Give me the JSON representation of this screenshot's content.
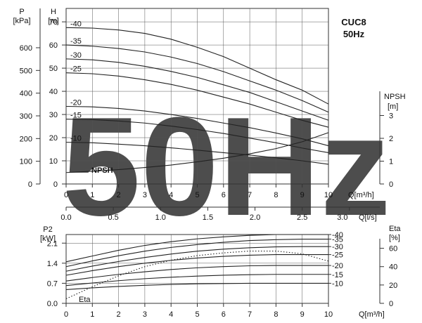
{
  "chart_data": [
    {
      "type": "line",
      "title": "CUC8",
      "subtitle": "50Hz",
      "watermark": "50Hz",
      "xlabel": "Q[m³/h]",
      "xlabel2": "Q[l/s]",
      "x_ticks": [
        "0",
        "1",
        "2",
        "3",
        "4",
        "5",
        "6",
        "7",
        "8",
        "9",
        "10"
      ],
      "x2_ticks": [
        "0.0",
        "0.5",
        "1.0",
        "1.5",
        "2.0",
        "2.5",
        "3.0"
      ],
      "x2_values": [
        0,
        0.5,
        1.0,
        1.5,
        2.0,
        2.5,
        3.0
      ],
      "xlim": [
        0,
        10
      ],
      "left_axis_p": {
        "label": "P",
        "unit": "[kPa]",
        "ticks": [
          "0",
          "100",
          "200",
          "300",
          "400",
          "500",
          "600"
        ],
        "values": [
          0,
          100,
          200,
          300,
          400,
          500,
          600
        ]
      },
      "left_axis_h": {
        "label": "H",
        "unit": "[m]",
        "ticks": [
          "0",
          "10",
          "20",
          "30",
          "40",
          "50",
          "60",
          "70"
        ],
        "values": [
          0,
          10,
          20,
          30,
          40,
          50,
          60,
          70
        ]
      },
      "right_axis": {
        "label": "NPSH",
        "unit": "[m]",
        "ticks": [
          "0",
          "1",
          "2",
          "3"
        ],
        "values": [
          0,
          1,
          2,
          3
        ]
      },
      "ylim": [
        0,
        76
      ],
      "series": [
        {
          "name": "-40",
          "x": [
            0,
            1,
            2,
            3,
            4,
            5,
            6,
            7,
            8,
            9,
            10
          ],
          "y": [
            67.5,
            67.3,
            66.5,
            65.0,
            62.5,
            59.0,
            55.0,
            50.0,
            45.0,
            40.5,
            34.5
          ]
        },
        {
          "name": "-35",
          "x": [
            0,
            1,
            2,
            3,
            4,
            5,
            6,
            7,
            8,
            9,
            10
          ],
          "y": [
            60.0,
            59.5,
            58.5,
            57.0,
            54.8,
            52.0,
            48.5,
            44.5,
            40.5,
            36.0,
            31.0
          ]
        },
        {
          "name": "-30",
          "x": [
            0,
            1,
            2,
            3,
            4,
            5,
            6,
            7,
            8,
            9,
            10
          ],
          "y": [
            54.0,
            53.6,
            52.5,
            50.8,
            48.6,
            46.0,
            42.8,
            39.5,
            35.5,
            31.5,
            27.5
          ]
        },
        {
          "name": "-25",
          "x": [
            0,
            1,
            2,
            3,
            4,
            5,
            6,
            7,
            8,
            9,
            10
          ],
          "y": [
            48.0,
            47.6,
            46.6,
            45.0,
            43.0,
            40.5,
            37.5,
            34.5,
            31.0,
            27.5,
            24.5
          ]
        },
        {
          "name": "-20",
          "x": [
            0,
            1,
            2,
            3,
            4,
            5,
            6,
            7,
            8,
            9,
            10
          ],
          "y": [
            33.5,
            33.3,
            32.6,
            31.5,
            30.0,
            28.3,
            26.3,
            24.3,
            22.0,
            19.5,
            16.5
          ]
        },
        {
          "name": "-15",
          "x": [
            0,
            1,
            2,
            3,
            4,
            5,
            6,
            7,
            8,
            9,
            10
          ],
          "y": [
            28.0,
            27.8,
            27.2,
            26.3,
            25.0,
            23.5,
            21.8,
            19.8,
            17.8,
            15.5,
            13.5
          ]
        },
        {
          "name": "-10",
          "x": [
            0,
            1,
            2,
            3,
            4,
            5,
            6,
            7,
            8,
            9,
            10
          ],
          "y": [
            18.0,
            17.8,
            17.2,
            16.5,
            15.6,
            14.6,
            13.5,
            12.5,
            11.3,
            10.0,
            8.5
          ]
        },
        {
          "name": "NPSH",
          "axis": "right",
          "x": [
            0,
            1,
            2,
            3,
            4,
            5,
            6,
            7,
            8,
            9,
            10
          ],
          "y": [
            0.5,
            0.56,
            0.63,
            0.72,
            0.83,
            0.97,
            1.13,
            1.32,
            1.55,
            1.85,
            2.25
          ]
        }
      ]
    },
    {
      "type": "line",
      "ylabel": "P2",
      "yunit": "[kW]",
      "y2label": "Eta",
      "y2unit": "[%]",
      "xlabel": "Q[m³/h]",
      "x_ticks": [
        "0",
        "1",
        "2",
        "3",
        "4",
        "5",
        "6",
        "7",
        "8",
        "9",
        "10"
      ],
      "xlim": [
        0,
        10
      ],
      "y_ticks": [
        "0.0",
        "0.7",
        "1.4",
        "2.1"
      ],
      "y_values": [
        0,
        0.7,
        1.4,
        2.1
      ],
      "ylim": [
        0,
        2.4
      ],
      "y2_ticks": [
        "0",
        "20",
        "40",
        "60"
      ],
      "y2_values": [
        0,
        20,
        40,
        60
      ],
      "y2lim": [
        0,
        75
      ],
      "eta_label": "Eta",
      "series": [
        {
          "name": "-40",
          "x": [
            0,
            1,
            2,
            3,
            4,
            5,
            6,
            7,
            8,
            9,
            10
          ],
          "y": [
            1.45,
            1.65,
            1.85,
            2.02,
            2.15,
            2.25,
            2.32,
            2.37,
            2.4,
            2.4,
            2.4
          ]
        },
        {
          "name": "-35",
          "x": [
            0,
            1,
            2,
            3,
            4,
            5,
            6,
            7,
            8,
            9,
            10
          ],
          "y": [
            1.28,
            1.48,
            1.66,
            1.82,
            1.95,
            2.05,
            2.13,
            2.19,
            2.22,
            2.24,
            2.24
          ]
        },
        {
          "name": "-30",
          "x": [
            0,
            1,
            2,
            3,
            4,
            5,
            6,
            7,
            8,
            9,
            10
          ],
          "y": [
            1.12,
            1.3,
            1.46,
            1.6,
            1.72,
            1.82,
            1.89,
            1.94,
            1.97,
            1.98,
            1.98
          ]
        },
        {
          "name": "-25",
          "x": [
            0,
            1,
            2,
            3,
            4,
            5,
            6,
            7,
            8,
            9,
            10
          ],
          "y": [
            0.98,
            1.14,
            1.28,
            1.4,
            1.5,
            1.58,
            1.64,
            1.68,
            1.7,
            1.7,
            1.7
          ]
        },
        {
          "name": "-20",
          "x": [
            0,
            1,
            2,
            3,
            4,
            5,
            6,
            7,
            8,
            9,
            10
          ],
          "y": [
            0.78,
            0.9,
            1.01,
            1.1,
            1.18,
            1.24,
            1.28,
            1.31,
            1.32,
            1.32,
            1.32
          ]
        },
        {
          "name": "-15",
          "x": [
            0,
            1,
            2,
            3,
            4,
            5,
            6,
            7,
            8,
            9,
            10
          ],
          "y": [
            0.62,
            0.71,
            0.79,
            0.86,
            0.91,
            0.95,
            0.98,
            1.0,
            1.01,
            1.01,
            1.01
          ]
        },
        {
          "name": "-10",
          "x": [
            0,
            1,
            2,
            3,
            4,
            5,
            6,
            7,
            8,
            9,
            10
          ],
          "y": [
            0.48,
            0.54,
            0.59,
            0.63,
            0.66,
            0.68,
            0.69,
            0.7,
            0.7,
            0.7,
            0.7
          ]
        },
        {
          "name": "Eta",
          "axis": "right",
          "style": "dotted",
          "x": [
            0,
            1,
            2,
            3,
            4,
            5,
            6,
            7,
            8,
            9,
            10
          ],
          "y": [
            5,
            18,
            30,
            40,
            47,
            52,
            55,
            57,
            57,
            54,
            46
          ]
        }
      ]
    }
  ]
}
